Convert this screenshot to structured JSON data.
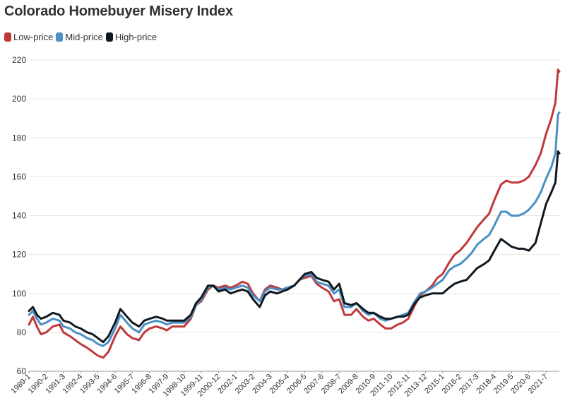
{
  "chart_data": {
    "type": "line",
    "title": "Colorado Homebuyer Misery Index",
    "xlabel": "",
    "ylabel": "",
    "ylim": [
      60,
      220
    ],
    "y_ticks": [
      60,
      80,
      100,
      120,
      140,
      160,
      180,
      200,
      220
    ],
    "x_tick_labels": [
      "1989-1",
      "1990-2",
      "1991-3",
      "1992-4",
      "1993-5",
      "1994-6",
      "1995-7",
      "1996-8",
      "1997-9",
      "1998-10",
      "1999-11",
      "2000-12",
      "2002-1",
      "2003-2",
      "2004-3",
      "2005-4",
      "2006-5",
      "2007-6",
      "2008-7",
      "2009-8",
      "2010-9",
      "2011-10",
      "2012-11",
      "2013-12",
      "2015-1",
      "2016-2",
      "2017-3",
      "2018-4",
      "2019-5",
      "2020-6",
      "2021-7"
    ],
    "grid": true,
    "legend_position": "top-left",
    "x_start": "1989-1",
    "x_end": "2022-5",
    "series": [
      {
        "name": "Low-price",
        "color": "#c0393b",
        "points": [
          [
            "1989-1",
            84
          ],
          [
            "1989-4",
            88
          ],
          [
            "1989-7",
            83
          ],
          [
            "1989-10",
            79
          ],
          [
            "1990-2",
            80
          ],
          [
            "1990-7",
            83
          ],
          [
            "1990-12",
            84
          ],
          [
            "1991-3",
            80
          ],
          [
            "1991-8",
            78
          ],
          [
            "1991-12",
            76
          ],
          [
            "1992-4",
            74
          ],
          [
            "1992-9",
            72
          ],
          [
            "1993-1",
            70
          ],
          [
            "1993-5",
            68
          ],
          [
            "1993-9",
            67
          ],
          [
            "1994-1",
            70
          ],
          [
            "1994-6",
            78
          ],
          [
            "1994-10",
            83
          ],
          [
            "1995-3",
            79
          ],
          [
            "1995-7",
            77
          ],
          [
            "1995-12",
            76
          ],
          [
            "1996-4",
            80
          ],
          [
            "1996-8",
            82
          ],
          [
            "1997-1",
            83
          ],
          [
            "1997-6",
            82
          ],
          [
            "1997-9",
            81
          ],
          [
            "1998-1",
            83
          ],
          [
            "1998-6",
            83
          ],
          [
            "1998-10",
            83
          ],
          [
            "1999-3",
            87
          ],
          [
            "1999-7",
            94
          ],
          [
            "1999-11",
            96
          ],
          [
            "2000-4",
            102
          ],
          [
            "2000-8",
            104
          ],
          [
            "2000-12",
            103
          ],
          [
            "2001-5",
            104
          ],
          [
            "2001-9",
            103
          ],
          [
            "2002-1",
            104
          ],
          [
            "2002-6",
            106
          ],
          [
            "2002-10",
            105
          ],
          [
            "2003-2",
            100
          ],
          [
            "2003-7",
            96
          ],
          [
            "2003-11",
            102
          ],
          [
            "2004-3",
            104
          ],
          [
            "2004-8",
            103
          ],
          [
            "2004-12",
            102
          ],
          [
            "2005-4",
            103
          ],
          [
            "2005-9",
            104
          ],
          [
            "2006-1",
            107
          ],
          [
            "2006-5",
            108
          ],
          [
            "2006-10",
            109
          ],
          [
            "2007-2",
            105
          ],
          [
            "2007-6",
            103
          ],
          [
            "2007-11",
            101
          ],
          [
            "2008-3",
            96
          ],
          [
            "2008-7",
            97
          ],
          [
            "2008-11",
            89
          ],
          [
            "2009-4",
            89
          ],
          [
            "2009-8",
            92
          ],
          [
            "2010-1",
            88
          ],
          [
            "2010-5",
            86
          ],
          [
            "2010-9",
            87
          ],
          [
            "2011-2",
            84
          ],
          [
            "2011-6",
            82
          ],
          [
            "2011-10",
            82
          ],
          [
            "2012-3",
            84
          ],
          [
            "2012-7",
            85
          ],
          [
            "2012-11",
            87
          ],
          [
            "2013-4",
            94
          ],
          [
            "2013-8",
            99
          ],
          [
            "2013-12",
            101
          ],
          [
            "2014-5",
            104
          ],
          [
            "2014-9",
            108
          ],
          [
            "2015-1",
            110
          ],
          [
            "2015-6",
            116
          ],
          [
            "2015-10",
            120
          ],
          [
            "2016-2",
            122
          ],
          [
            "2016-7",
            126
          ],
          [
            "2016-11",
            130
          ],
          [
            "2017-3",
            134
          ],
          [
            "2017-8",
            138
          ],
          [
            "2017-12",
            141
          ],
          [
            "2018-4",
            148
          ],
          [
            "2018-9",
            156
          ],
          [
            "2019-1",
            158
          ],
          [
            "2019-5",
            157
          ],
          [
            "2019-10",
            157
          ],
          [
            "2020-2",
            158
          ],
          [
            "2020-6",
            160
          ],
          [
            "2020-11",
            166
          ],
          [
            "2021-3",
            172
          ],
          [
            "2021-7",
            182
          ],
          [
            "2021-11",
            190
          ],
          [
            "2022-2",
            198
          ],
          [
            "2022-4",
            215
          ],
          [
            "2022-5",
            214
          ]
        ]
      },
      {
        "name": "Mid-price",
        "color": "#4a90c2",
        "points": [
          [
            "1989-1",
            89
          ],
          [
            "1989-4",
            91
          ],
          [
            "1989-7",
            87
          ],
          [
            "1989-10",
            84
          ],
          [
            "1990-2",
            85
          ],
          [
            "1990-7",
            87
          ],
          [
            "1990-12",
            86
          ],
          [
            "1991-3",
            83
          ],
          [
            "1991-8",
            82
          ],
          [
            "1991-12",
            80
          ],
          [
            "1992-4",
            79
          ],
          [
            "1992-9",
            77
          ],
          [
            "1993-1",
            76
          ],
          [
            "1993-5",
            74
          ],
          [
            "1993-9",
            73
          ],
          [
            "1994-1",
            75
          ],
          [
            "1994-6",
            82
          ],
          [
            "1994-10",
            89
          ],
          [
            "1995-3",
            85
          ],
          [
            "1995-7",
            82
          ],
          [
            "1995-12",
            80
          ],
          [
            "1996-4",
            84
          ],
          [
            "1996-8",
            85
          ],
          [
            "1997-1",
            86
          ],
          [
            "1997-6",
            85
          ],
          [
            "1997-9",
            84
          ],
          [
            "1998-1",
            85
          ],
          [
            "1998-6",
            85
          ],
          [
            "1998-10",
            85
          ],
          [
            "1999-3",
            88
          ],
          [
            "1999-7",
            94
          ],
          [
            "1999-11",
            97
          ],
          [
            "2000-4",
            103
          ],
          [
            "2000-8",
            104
          ],
          [
            "2000-12",
            102
          ],
          [
            "2001-5",
            103
          ],
          [
            "2001-9",
            102
          ],
          [
            "2002-1",
            103
          ],
          [
            "2002-6",
            104
          ],
          [
            "2002-10",
            103
          ],
          [
            "2003-2",
            99
          ],
          [
            "2003-7",
            96
          ],
          [
            "2003-11",
            101
          ],
          [
            "2004-3",
            103
          ],
          [
            "2004-8",
            102
          ],
          [
            "2004-12",
            102
          ],
          [
            "2005-4",
            103
          ],
          [
            "2005-9",
            104
          ],
          [
            "2006-1",
            107
          ],
          [
            "2006-5",
            109
          ],
          [
            "2006-10",
            110
          ],
          [
            "2007-2",
            106
          ],
          [
            "2007-6",
            105
          ],
          [
            "2007-11",
            104
          ],
          [
            "2008-3",
            100
          ],
          [
            "2008-7",
            102
          ],
          [
            "2008-11",
            93
          ],
          [
            "2009-4",
            93
          ],
          [
            "2009-8",
            95
          ],
          [
            "2010-1",
            91
          ],
          [
            "2010-5",
            89
          ],
          [
            "2010-9",
            90
          ],
          [
            "2011-2",
            87
          ],
          [
            "2011-6",
            86
          ],
          [
            "2011-10",
            87
          ],
          [
            "2012-3",
            88
          ],
          [
            "2012-7",
            89
          ],
          [
            "2012-11",
            90
          ],
          [
            "2013-4",
            96
          ],
          [
            "2013-8",
            100
          ],
          [
            "2013-12",
            101
          ],
          [
            "2014-5",
            103
          ],
          [
            "2014-9",
            105
          ],
          [
            "2015-1",
            107
          ],
          [
            "2015-6",
            112
          ],
          [
            "2015-10",
            114
          ],
          [
            "2016-2",
            115
          ],
          [
            "2016-7",
            118
          ],
          [
            "2016-11",
            121
          ],
          [
            "2017-3",
            125
          ],
          [
            "2017-8",
            128
          ],
          [
            "2017-12",
            130
          ],
          [
            "2018-4",
            135
          ],
          [
            "2018-9",
            142
          ],
          [
            "2019-1",
            142
          ],
          [
            "2019-5",
            140
          ],
          [
            "2019-10",
            140
          ],
          [
            "2020-2",
            141
          ],
          [
            "2020-6",
            143
          ],
          [
            "2020-11",
            147
          ],
          [
            "2021-3",
            152
          ],
          [
            "2021-7",
            159
          ],
          [
            "2021-11",
            165
          ],
          [
            "2022-2",
            172
          ],
          [
            "2022-4",
            192
          ],
          [
            "2022-5",
            193
          ]
        ]
      },
      {
        "name": "High-price",
        "color": "#111820",
        "points": [
          [
            "1989-1",
            91
          ],
          [
            "1989-4",
            93
          ],
          [
            "1989-7",
            89
          ],
          [
            "1989-10",
            87
          ],
          [
            "1990-2",
            88
          ],
          [
            "1990-7",
            90
          ],
          [
            "1990-12",
            89
          ],
          [
            "1991-3",
            86
          ],
          [
            "1991-8",
            85
          ],
          [
            "1991-12",
            83
          ],
          [
            "1992-4",
            82
          ],
          [
            "1992-9",
            80
          ],
          [
            "1993-1",
            79
          ],
          [
            "1993-5",
            77
          ],
          [
            "1993-9",
            75
          ],
          [
            "1994-1",
            78
          ],
          [
            "1994-6",
            85
          ],
          [
            "1994-10",
            92
          ],
          [
            "1995-3",
            88
          ],
          [
            "1995-7",
            85
          ],
          [
            "1995-12",
            83
          ],
          [
            "1996-4",
            86
          ],
          [
            "1996-8",
            87
          ],
          [
            "1997-1",
            88
          ],
          [
            "1997-6",
            87
          ],
          [
            "1997-9",
            86
          ],
          [
            "1998-1",
            86
          ],
          [
            "1998-6",
            86
          ],
          [
            "1998-10",
            86
          ],
          [
            "1999-3",
            89
          ],
          [
            "1999-7",
            95
          ],
          [
            "1999-11",
            98
          ],
          [
            "2000-4",
            104
          ],
          [
            "2000-8",
            104
          ],
          [
            "2000-12",
            101
          ],
          [
            "2001-5",
            102
          ],
          [
            "2001-9",
            100
          ],
          [
            "2002-1",
            101
          ],
          [
            "2002-6",
            102
          ],
          [
            "2002-10",
            101
          ],
          [
            "2003-2",
            97
          ],
          [
            "2003-7",
            93
          ],
          [
            "2003-11",
            99
          ],
          [
            "2004-3",
            101
          ],
          [
            "2004-8",
            100
          ],
          [
            "2004-12",
            101
          ],
          [
            "2005-4",
            102
          ],
          [
            "2005-9",
            104
          ],
          [
            "2006-1",
            107
          ],
          [
            "2006-5",
            110
          ],
          [
            "2006-10",
            111
          ],
          [
            "2007-2",
            108
          ],
          [
            "2007-6",
            107
          ],
          [
            "2007-11",
            106
          ],
          [
            "2008-3",
            102
          ],
          [
            "2008-7",
            105
          ],
          [
            "2008-11",
            95
          ],
          [
            "2009-4",
            94
          ],
          [
            "2009-8",
            95
          ],
          [
            "2010-1",
            92
          ],
          [
            "2010-5",
            90
          ],
          [
            "2010-9",
            90
          ],
          [
            "2011-2",
            88
          ],
          [
            "2011-6",
            87
          ],
          [
            "2011-10",
            87
          ],
          [
            "2012-3",
            88
          ],
          [
            "2012-7",
            88
          ],
          [
            "2012-11",
            89
          ],
          [
            "2013-4",
            95
          ],
          [
            "2013-8",
            98
          ],
          [
            "2013-12",
            99
          ],
          [
            "2014-5",
            100
          ],
          [
            "2014-9",
            100
          ],
          [
            "2015-1",
            100
          ],
          [
            "2015-6",
            103
          ],
          [
            "2015-10",
            105
          ],
          [
            "2016-2",
            106
          ],
          [
            "2016-7",
            107
          ],
          [
            "2016-11",
            110
          ],
          [
            "2017-3",
            113
          ],
          [
            "2017-8",
            115
          ],
          [
            "2017-12",
            117
          ],
          [
            "2018-4",
            122
          ],
          [
            "2018-9",
            128
          ],
          [
            "2019-1",
            126
          ],
          [
            "2019-5",
            124
          ],
          [
            "2019-10",
            123
          ],
          [
            "2020-2",
            123
          ],
          [
            "2020-6",
            122
          ],
          [
            "2020-11",
            126
          ],
          [
            "2021-3",
            136
          ],
          [
            "2021-7",
            146
          ],
          [
            "2021-11",
            152
          ],
          [
            "2022-2",
            157
          ],
          [
            "2022-4",
            173
          ],
          [
            "2022-5",
            172
          ]
        ]
      }
    ]
  }
}
